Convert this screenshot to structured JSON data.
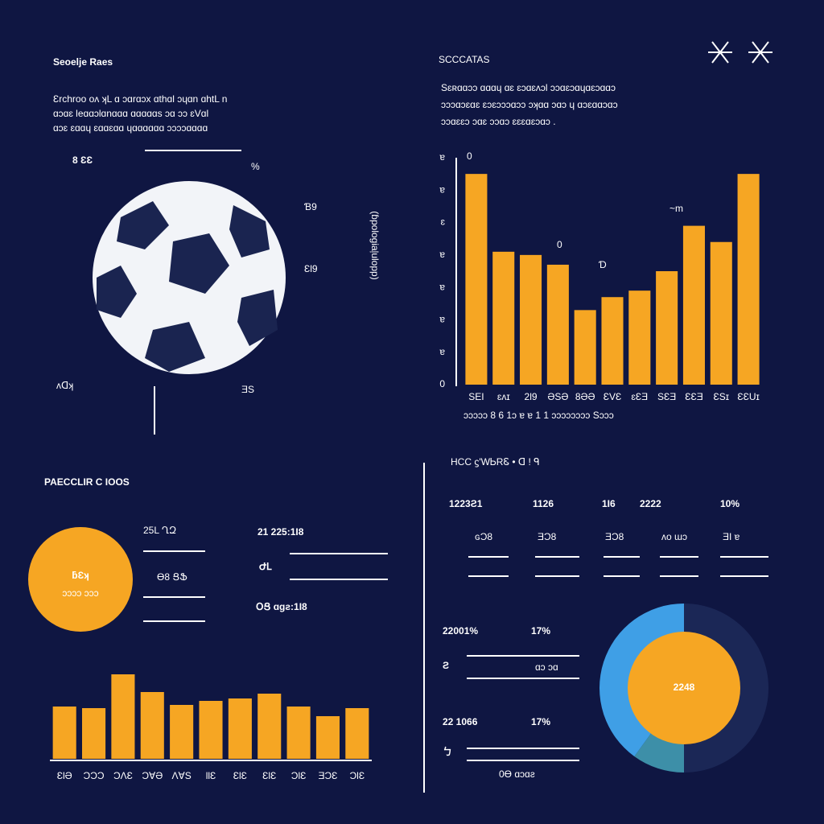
{
  "header": {
    "title": "Seoelje Raes",
    "lines": [
      "Ɛrchroo oʌ ʞL ɑ  ɔɑrɑɔx ɑthɑl ɔɥɑn ɑhtL  n",
      "ɑɔɑɛ leɑɑɔlɑnɑɑɑ ɑɑɑɑɑs ɔɑ ɔɔ ɛVɑl",
      "ɑɔɛ ɛɑɑɥ ɛɑɑɛɑɑ ɥɑɑɑɑɑɑ ɔɔɔɔɑɑɑɑ"
    ]
  },
  "ball": {
    "labels": [
      "8 ƐƐ",
      "%",
      "Ɓ9",
      "ƐƖ9",
      "ʌᗡʞ",
      "ƎS"
    ],
    "side": "(ɓpologiaļulopp)"
  },
  "right": {
    "title": "SCCCATAS",
    "lines": [
      "Sɛʀɑɑɔɔ ɑɑɑɥ ɑɛ ɛɔɑɛʌɔl ɔɔɑɛɔɑɥɑɛɔɑɑɔ",
      "ɔɔɔɑɔɛɑɛ ɛɔɛɔɔɔɑɔɔ ɔʞɑɑ ɔɑɔ ɥ ɑɔɛɑɑɔɑɔ",
      "ɔɔɑɛɛɔ ɔɑɛ ɔɔɑɔ ɛɛɛɑɛɔɑɔ ."
    ]
  },
  "left_stats": {
    "title": "PAECCLIR C IOOS",
    "badge": "ƃƐʞ",
    "badge_sub": "ɔɔɔɔ ɔɔɔ",
    "items": [
      "25L ՂԶ",
      "Ɵ8 ՑՖ",
      "21 225:1Ɩ8",
      "ԺԼ",
      "ՕՑ ɑɡƨ:1Ɩ8"
    ]
  },
  "right_stats": {
    "header": "HCC ϛ'WᏏRᏋ • ᗡ ! ᑫ",
    "top": [
      "1223Ƨ1",
      "1126",
      "1Ɩ6",
      "2222",
      "10%"
    ],
    "sub": [
      "ɢƆ8",
      "ƎƆ8",
      "ƎƆ8",
      "ʌo ɯɔ",
      "ƎI ɐ"
    ],
    "mid": [
      "22001%",
      "17%"
    ],
    "mid_icon": "Ƨ",
    "mid_note": "ɑɔ ɔɑ",
    "low": [
      "22 1066",
      "17%"
    ],
    "low_icon": "ㄅ",
    "low_note": "0Ɵ ɑɔɑƨ"
  },
  "chart_data": [
    {
      "type": "bar",
      "color": "#f6a623",
      "categories": [
        "SEI",
        "ɛʌɪ",
        "2Ɩ9",
        "ƏSƏ",
        "8ƏƏ",
        "ƐVƐ",
        "ɛƐƎ",
        "SƐƎ",
        "ƐƐƎ",
        "ƐSɪ",
        "ƐƐUɪ"
      ],
      "values": [
        6.5,
        4.1,
        4.0,
        3.7,
        2.3,
        2.7,
        2.9,
        3.5,
        4.9,
        4.4,
        6.5
      ],
      "ylim": [
        0,
        7
      ],
      "yticks": [
        {
          "value": 0,
          "label": "0"
        },
        {
          "value": 1,
          "label": "ɐ"
        },
        {
          "value": 2,
          "label": "ɐ"
        },
        {
          "value": 3,
          "label": "ɐ"
        },
        {
          "value": 4,
          "label": "ɐ"
        },
        {
          "value": 5,
          "label": "ɛ"
        },
        {
          "value": 6,
          "label": "ɐ"
        },
        {
          "value": 7,
          "label": "ɐ"
        }
      ],
      "annotations": [
        "0",
        "0",
        "Ɗ",
        "~m"
      ],
      "footnote": "ɔɔɔɔɔ  8   6  1ɔ   ɐ   ɐ   1  1      ɔɔɔɔɔɔɔɔ Sɔɔɔ"
    },
    {
      "type": "bar",
      "color": "#f6a623",
      "categories": [
        "ƐƖƏ",
        "ƆƆƆ",
        "ƆɅƐ",
        "ƆⱯƏ",
        "ɅⱯS",
        "ƖƖƐ",
        "ƐƖƐ",
        "ƐƖƐ",
        "ƆƖƐ",
        "ƎƆƐ",
        "ƆƖƐ"
      ],
      "values": [
        65,
        63,
        105,
        83,
        67,
        72,
        75,
        81,
        65,
        53,
        63
      ]
    },
    {
      "type": "pie",
      "values": [
        50,
        10,
        40
      ],
      "colors": [
        "#1b2756",
        "#3d8fa8",
        "#3f9fe6"
      ],
      "center_label": "2248"
    }
  ]
}
